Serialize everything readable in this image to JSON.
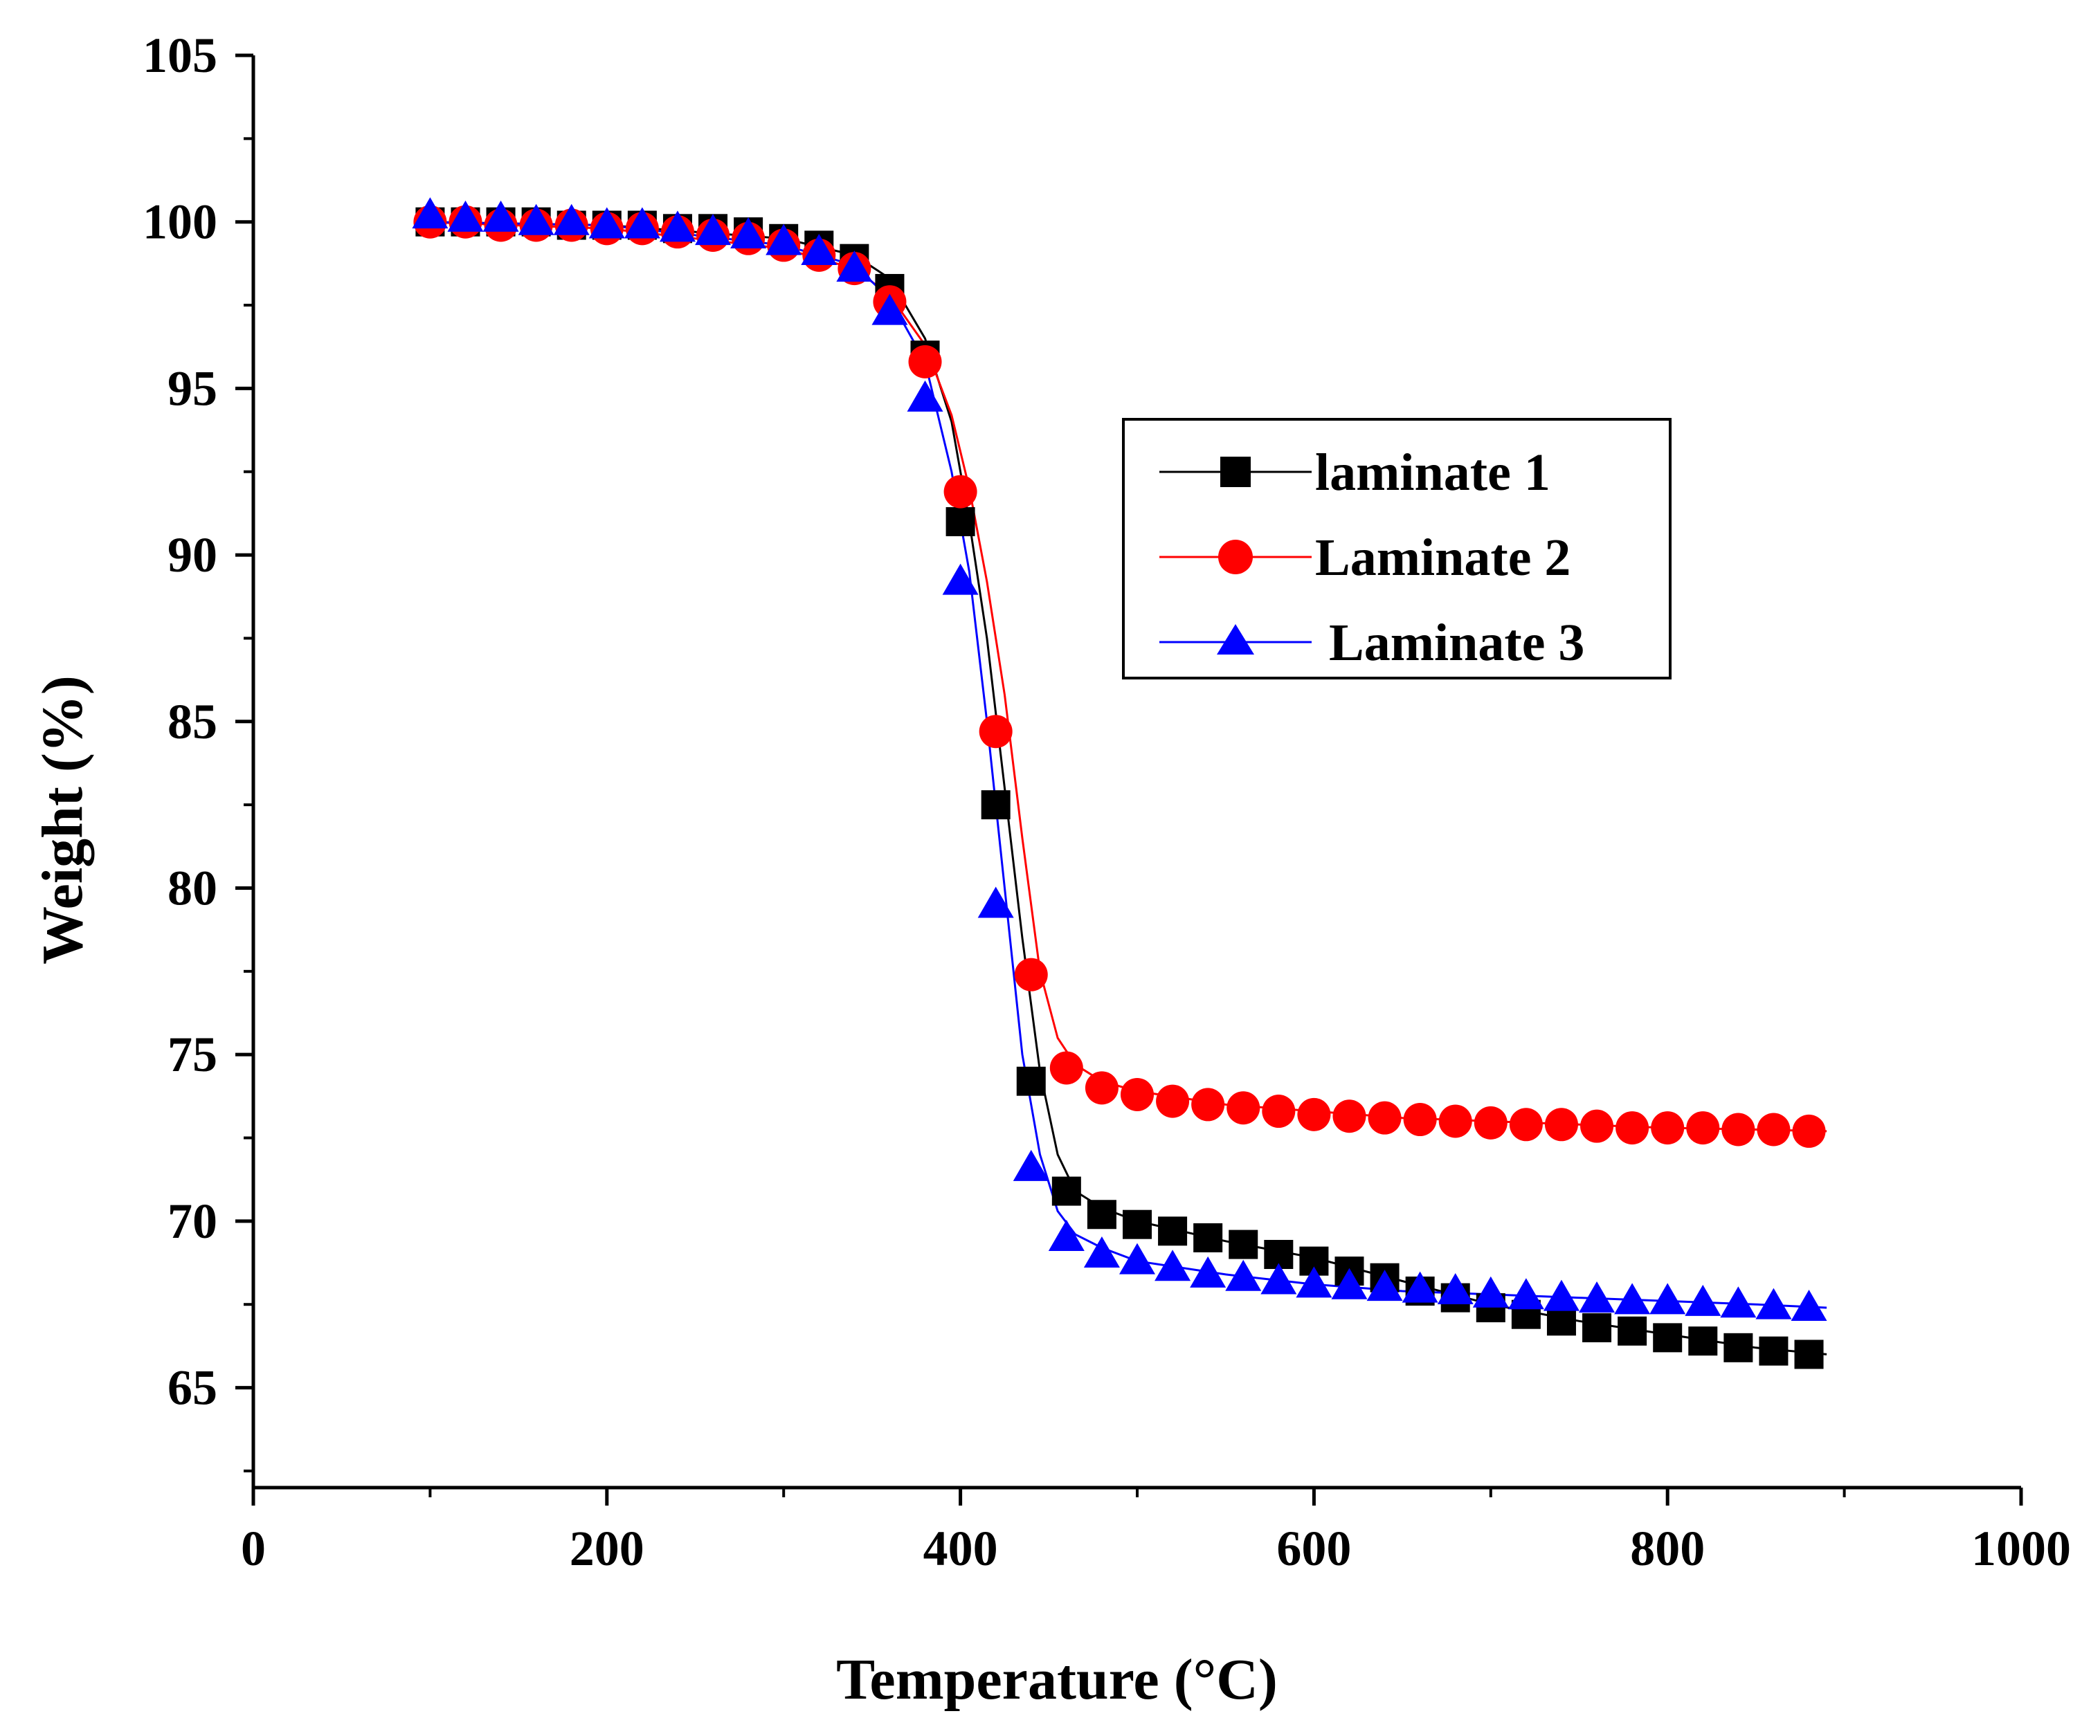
{
  "chart_data": {
    "type": "line",
    "title": "",
    "xlabel": "Temperature (°C)",
    "ylabel": "Weight (%)",
    "xlim": [
      0,
      1000
    ],
    "ylim": [
      62,
      105
    ],
    "xticks": [
      0,
      200,
      400,
      600,
      800,
      1000
    ],
    "yticks": [
      65,
      70,
      75,
      80,
      85,
      90,
      95,
      100,
      105
    ],
    "xtick_labels": [
      "0",
      "200",
      "400",
      "600",
      "800",
      "1000"
    ],
    "ytick_labels": [
      "65",
      "70",
      "75",
      "80",
      "85",
      "90",
      "95",
      "100",
      "105"
    ],
    "grid": false,
    "legend_position": "top-right",
    "series": [
      {
        "name": "laminate 1",
        "color": "#000000",
        "marker": "square",
        "line_x": [
          95,
          200,
          300,
          340,
          360,
          380,
          395,
          405,
          415,
          425,
          435,
          445,
          455,
          465,
          480,
          500,
          550,
          600,
          650,
          700,
          750,
          800,
          850,
          890
        ],
        "line_y": [
          100,
          99.9,
          99.5,
          99.0,
          98.3,
          96.5,
          94.0,
          91.0,
          87.5,
          83.0,
          78.5,
          74.5,
          72.0,
          70.9,
          70.4,
          70.0,
          69.4,
          68.9,
          68.2,
          67.5,
          67.0,
          66.6,
          66.2,
          66.0
        ],
        "x": [
          100,
          120,
          140,
          160,
          180,
          200,
          220,
          240,
          260,
          280,
          300,
          320,
          340,
          360,
          380,
          400,
          420,
          440,
          460,
          480,
          500,
          520,
          540,
          560,
          580,
          600,
          620,
          640,
          660,
          680,
          700,
          720,
          740,
          760,
          780,
          800,
          820,
          840,
          860,
          880
        ],
        "values": [
          100.0,
          100.0,
          100.0,
          100.0,
          99.9,
          99.9,
          99.9,
          99.8,
          99.8,
          99.7,
          99.5,
          99.3,
          98.9,
          98.0,
          96.0,
          91.0,
          82.5,
          74.2,
          70.9,
          70.2,
          69.9,
          69.7,
          69.5,
          69.3,
          69.0,
          68.8,
          68.5,
          68.3,
          67.9,
          67.7,
          67.4,
          67.2,
          67.0,
          66.8,
          66.7,
          66.5,
          66.4,
          66.2,
          66.1,
          66.0
        ]
      },
      {
        "name": "Laminate 2",
        "color": "#ff0000",
        "marker": "circle",
        "line_x": [
          95,
          200,
          300,
          340,
          360,
          380,
          395,
          405,
          415,
          425,
          435,
          445,
          455,
          465,
          480,
          500,
          550,
          600,
          650,
          700,
          750,
          800,
          850,
          890
        ],
        "line_y": [
          100,
          99.8,
          99.2,
          98.6,
          97.8,
          96.3,
          94.2,
          92.0,
          89.2,
          85.8,
          81.5,
          77.5,
          75.5,
          74.7,
          74.2,
          73.9,
          73.5,
          73.3,
          73.1,
          73.0,
          72.9,
          72.8,
          72.75,
          72.7
        ],
        "x": [
          100,
          120,
          140,
          160,
          180,
          200,
          220,
          240,
          260,
          280,
          300,
          320,
          340,
          360,
          380,
          400,
          420,
          440,
          460,
          480,
          500,
          520,
          540,
          560,
          580,
          600,
          620,
          640,
          660,
          680,
          700,
          720,
          740,
          760,
          780,
          800,
          820,
          840,
          860,
          880
        ],
        "values": [
          100.0,
          100.0,
          99.9,
          99.9,
          99.9,
          99.8,
          99.8,
          99.7,
          99.6,
          99.5,
          99.3,
          99.0,
          98.6,
          97.6,
          95.8,
          91.9,
          84.7,
          77.4,
          74.6,
          74.0,
          73.8,
          73.6,
          73.5,
          73.4,
          73.3,
          73.2,
          73.15,
          73.1,
          73.05,
          73.0,
          72.95,
          72.9,
          72.9,
          72.85,
          72.8,
          72.8,
          72.8,
          72.75,
          72.75,
          72.7
        ]
      },
      {
        "name": "Laminate 3",
        "color": "#0000ff",
        "marker": "triangle",
        "line_x": [
          95,
          200,
          300,
          340,
          360,
          380,
          395,
          405,
          415,
          425,
          435,
          445,
          455,
          465,
          480,
          500,
          550,
          600,
          650,
          700,
          750,
          800,
          850,
          890
        ],
        "line_y": [
          100,
          99.9,
          99.3,
          98.7,
          97.7,
          95.8,
          92.5,
          89.5,
          85.0,
          80.0,
          75.0,
          72.0,
          70.3,
          69.6,
          69.2,
          68.8,
          68.4,
          68.1,
          67.9,
          67.8,
          67.7,
          67.6,
          67.5,
          67.4
        ],
        "x": [
          100,
          120,
          140,
          160,
          180,
          200,
          220,
          240,
          260,
          280,
          300,
          320,
          340,
          360,
          380,
          400,
          420,
          440,
          460,
          480,
          500,
          520,
          540,
          560,
          580,
          600,
          620,
          640,
          660,
          680,
          700,
          720,
          740,
          760,
          780,
          800,
          820,
          840,
          860,
          880
        ],
        "values": [
          100.2,
          100.1,
          100.1,
          100.0,
          100.0,
          99.9,
          99.9,
          99.8,
          99.7,
          99.6,
          99.4,
          99.1,
          98.6,
          97.3,
          94.7,
          89.2,
          79.5,
          71.6,
          69.5,
          69.0,
          68.8,
          68.6,
          68.4,
          68.3,
          68.2,
          68.1,
          68.05,
          68.0,
          67.95,
          67.9,
          67.8,
          67.75,
          67.7,
          67.65,
          67.6,
          67.6,
          67.55,
          67.5,
          67.45,
          67.4
        ]
      }
    ]
  }
}
